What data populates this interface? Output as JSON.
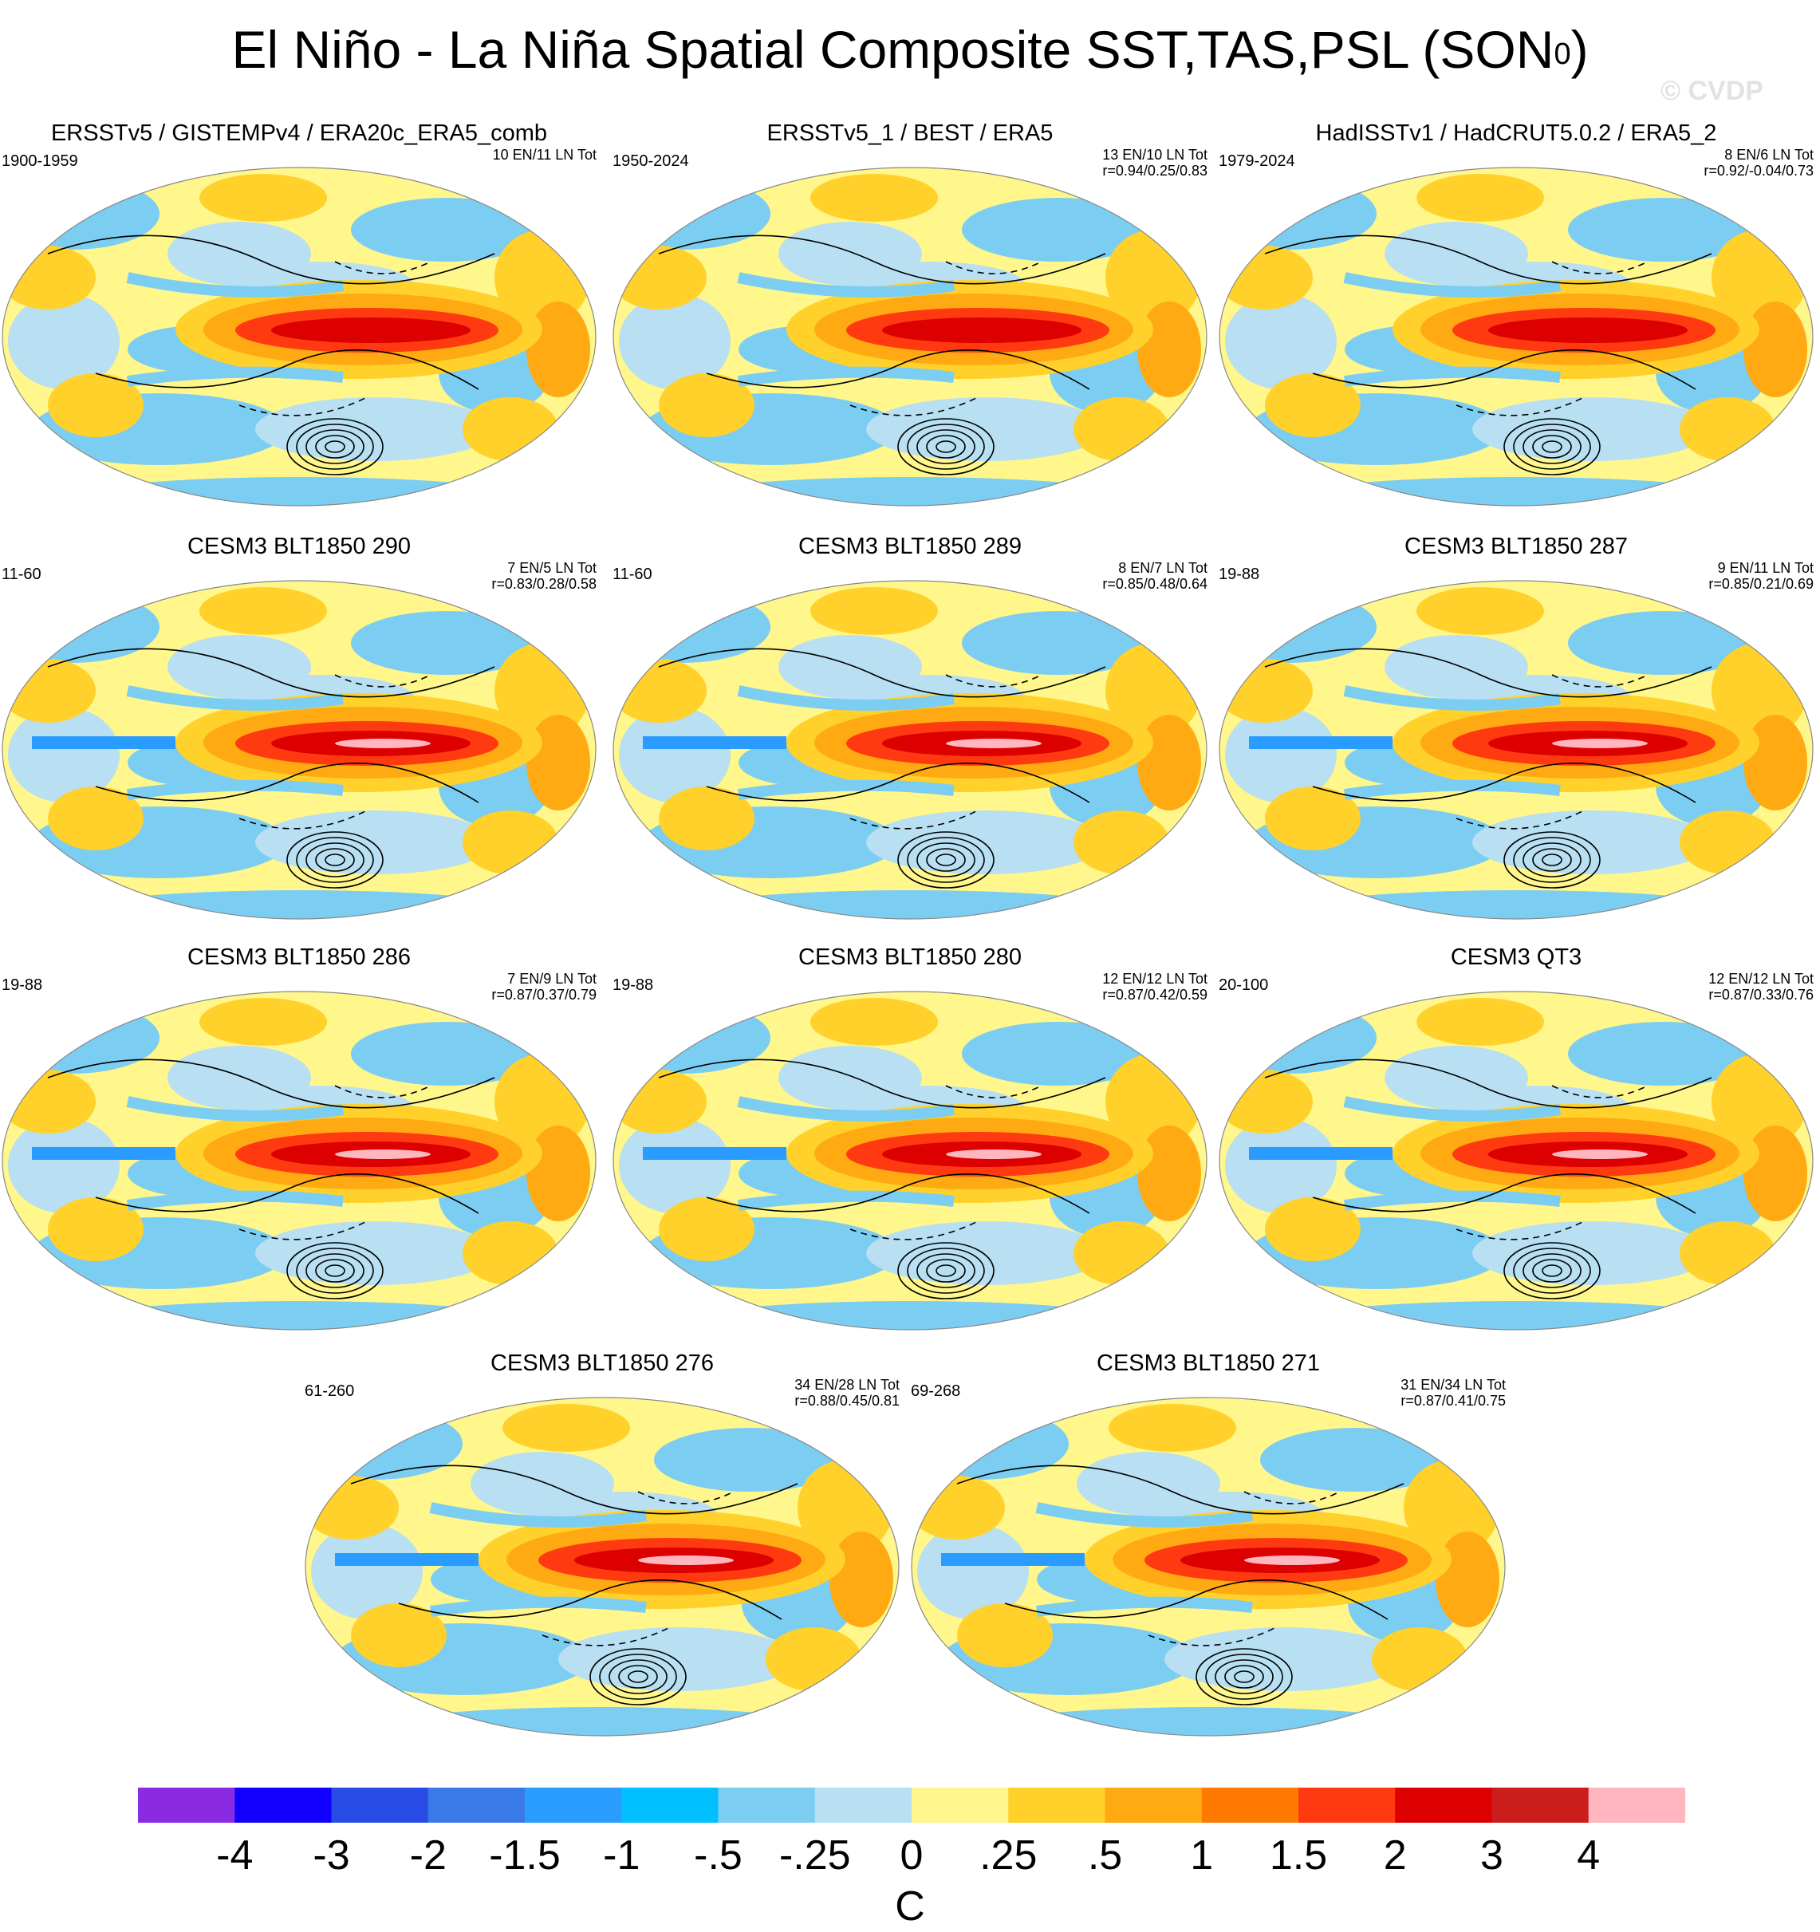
{
  "title": {
    "main": "El Niño - La Niña Spatial Composite SST,TAS,PSL (SON",
    "superscript": "0",
    "close": ")"
  },
  "watermark": "© CVDP",
  "panels": [
    {
      "title": "ERSSTv5 / GISTEMPv4 / ERA20c_ERA5_comb",
      "years": "1900-1959",
      "count": "10 EN/11 LN Tot",
      "corr": ""
    },
    {
      "title": "ERSSTv5_1 / BEST / ERA5",
      "years": "1950-2024",
      "count": "13 EN/10 LN Tot",
      "corr": "r=0.94/0.25/0.83"
    },
    {
      "title": "HadISSTv1 / HadCRUT5.0.2 / ERA5_2",
      "years": "1979-2024",
      "count": "8 EN/6 LN Tot",
      "corr": "r=0.92/-0.04/0.73"
    },
    {
      "title": "CESM3 BLT1850 290",
      "years": "11-60",
      "count": "7 EN/5 LN Tot",
      "corr": "r=0.83/0.28/0.58"
    },
    {
      "title": "CESM3 BLT1850 289",
      "years": "11-60",
      "count": "8 EN/7 LN Tot",
      "corr": "r=0.85/0.48/0.64"
    },
    {
      "title": "CESM3 BLT1850 287",
      "years": "19-88",
      "count": "9 EN/11 LN Tot",
      "corr": "r=0.85/0.21/0.69"
    },
    {
      "title": "CESM3 BLT1850 286",
      "years": "19-88",
      "count": "7 EN/9 LN Tot",
      "corr": "r=0.87/0.37/0.79"
    },
    {
      "title": "CESM3 BLT1850 280",
      "years": "19-88",
      "count": "12 EN/12 LN Tot",
      "corr": "r=0.87/0.42/0.59"
    },
    {
      "title": "CESM3 QT3",
      "years": "20-100",
      "count": "12 EN/12 LN Tot",
      "corr": "r=0.87/0.33/0.76"
    },
    {
      "title": "CESM3 BLT1850 276",
      "years": "61-260",
      "count": "34 EN/28 LN Tot",
      "corr": "r=0.88/0.45/0.81"
    },
    {
      "title": "CESM3 BLT1850 271",
      "years": "69-268",
      "count": "31 EN/34 LN Tot",
      "corr": "r=0.87/0.41/0.75"
    }
  ],
  "colorbar": {
    "colors": [
      "#8a2be2",
      "#1200ff",
      "#2a4ce6",
      "#3a7ae8",
      "#2a9cff",
      "#00c0ff",
      "#7ccdf2",
      "#b8dff2",
      "#fff68c",
      "#ffd12a",
      "#ffaa12",
      "#ff7a00",
      "#ff3a10",
      "#dc0000",
      "#cc1d1d",
      "#ffb6bf"
    ],
    "labels": [
      "-4",
      "-3",
      "-2",
      "-1.5",
      "-1",
      "-.5",
      "-.25",
      "0",
      ".25",
      ".5",
      "1",
      "1.5",
      "2",
      "3",
      "4"
    ],
    "units": "C"
  }
}
